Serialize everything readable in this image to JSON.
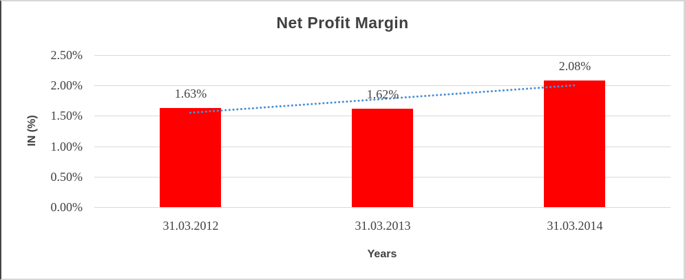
{
  "chart_data": {
    "type": "bar",
    "title": "Net Profit Margin",
    "xlabel": "Years",
    "ylabel": "IN (%)",
    "categories": [
      "31.03.2012",
      "31.03.2013",
      "31.03.2014"
    ],
    "values": [
      1.63,
      1.62,
      2.08
    ],
    "data_labels": [
      "1.63%",
      "1.62%",
      "2.08%"
    ],
    "ytick_values": [
      0,
      0.5,
      1,
      1.5,
      2,
      2.5
    ],
    "ytick_labels": [
      "0.00%",
      "0.50%",
      "1.00%",
      "1.50%",
      "2.00%",
      "2.50%"
    ],
    "ylim": [
      0,
      2.5
    ],
    "grid": true,
    "legend": "none",
    "trendline": {
      "type": "linear",
      "style": "dotted"
    },
    "colors": {
      "bar": "#FF0000",
      "trendline": "#4A90D5",
      "gridline": "#D9D9D9",
      "text": "#404040"
    }
  }
}
